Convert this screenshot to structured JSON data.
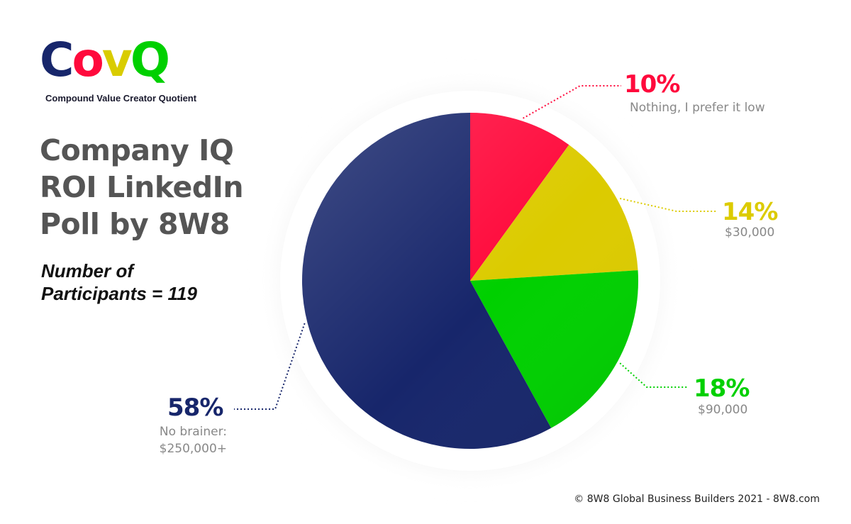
{
  "logo": {
    "letters": [
      {
        "char": "C",
        "color": "#17266b"
      },
      {
        "char": "o",
        "color": "#ff0a3c"
      },
      {
        "char": "v",
        "color": "#d9cc00"
      },
      {
        "char": "Q",
        "color": "#00d000"
      }
    ],
    "tagline": "Compound Value Creator Quotient"
  },
  "title_lines": [
    "Company IQ",
    "ROI LinkedIn",
    "Poll by 8W8"
  ],
  "participants_lines": [
    "Number of",
    "Participants = 119"
  ],
  "footer": "© 8W8 Global Business Builders 2021 - 8W8.com",
  "chart_data": {
    "type": "pie",
    "title": "",
    "slices": [
      {
        "label_lines": [
          "Nothing, I prefer it low"
        ],
        "value": 10,
        "percent_label": "10%",
        "color": "#ff0a3c"
      },
      {
        "label_lines": [
          "$30,000"
        ],
        "value": 14,
        "percent_label": "14%",
        "color": "#dccb00"
      },
      {
        "label_lines": [
          "$90,000"
        ],
        "value": 18,
        "percent_label": "18%",
        "color": "#00d000"
      },
      {
        "label_lines": [
          "No brainer:",
          "$250,000+"
        ],
        "value": 58,
        "percent_label": "58%",
        "color": "#17266b"
      }
    ]
  }
}
